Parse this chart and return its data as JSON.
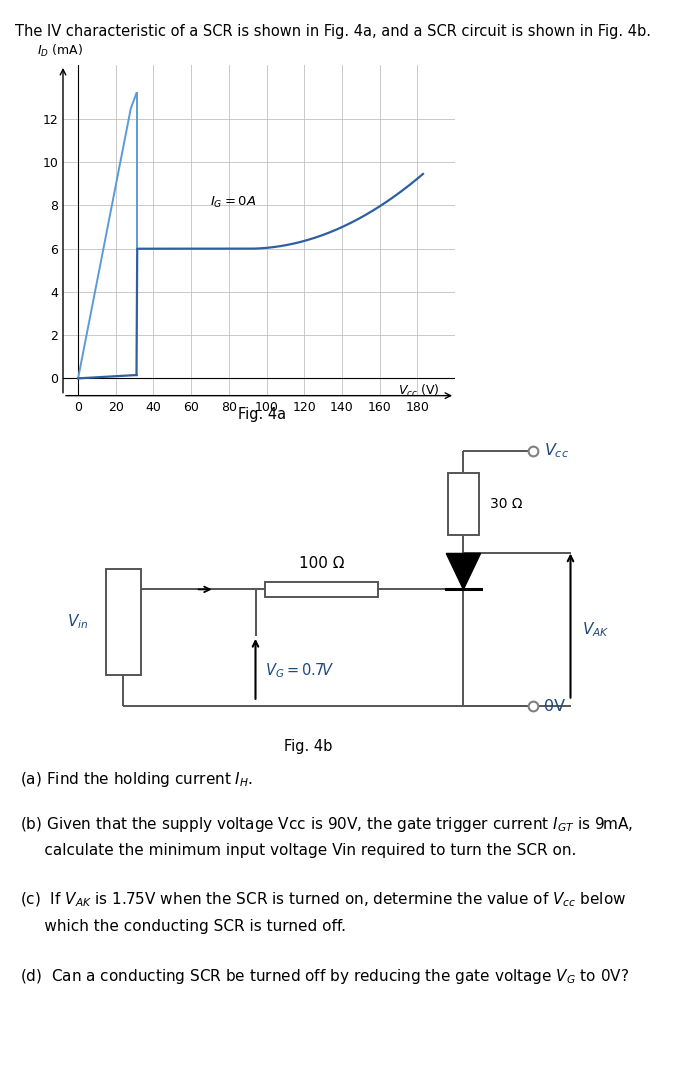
{
  "header_text": "The IV characteristic of a SCR is shown in Fig. 4a, and a SCR circuit is shown in Fig. 4b.",
  "fig4a_caption": "Fig. 4a",
  "fig4b_caption": "Fig. 4b",
  "ylabel": "I_D (mA)",
  "xlabel": "V_cc (V)",
  "yticks": [
    0,
    2,
    4,
    6,
    8,
    10,
    12
  ],
  "xticks": [
    0,
    20,
    40,
    60,
    80,
    100,
    120,
    140,
    160,
    180
  ],
  "ylim": [
    -0.8,
    14.5
  ],
  "xlim": [
    -8,
    200
  ],
  "ig0a_label": "I_G = 0A",
  "curve_color": "#2E5FA3",
  "line_color": "#5B9BD5",
  "grid_color": "#C0C0C0",
  "text_color": "#000000",
  "circuit_line_color": "#555555",
  "vcc_color": "#1F497D",
  "q_texts": [
    "(a) Find the holding current I_H.",
    "(b) Given that the supply voltage Vcc is 90V, the gate trigger current I_GT is 9mA,",
    "    calculate the minimum input voltage Vin required to turn the SCR on.",
    "(c)  If V_AK is 1.75V when the SCR is turned on, determine the value of V_cc below",
    "     which the conducting SCR is turned off.",
    "(d)  Can a conducting SCR be turned off by reducing the gate voltage V_G to 0V?"
  ]
}
